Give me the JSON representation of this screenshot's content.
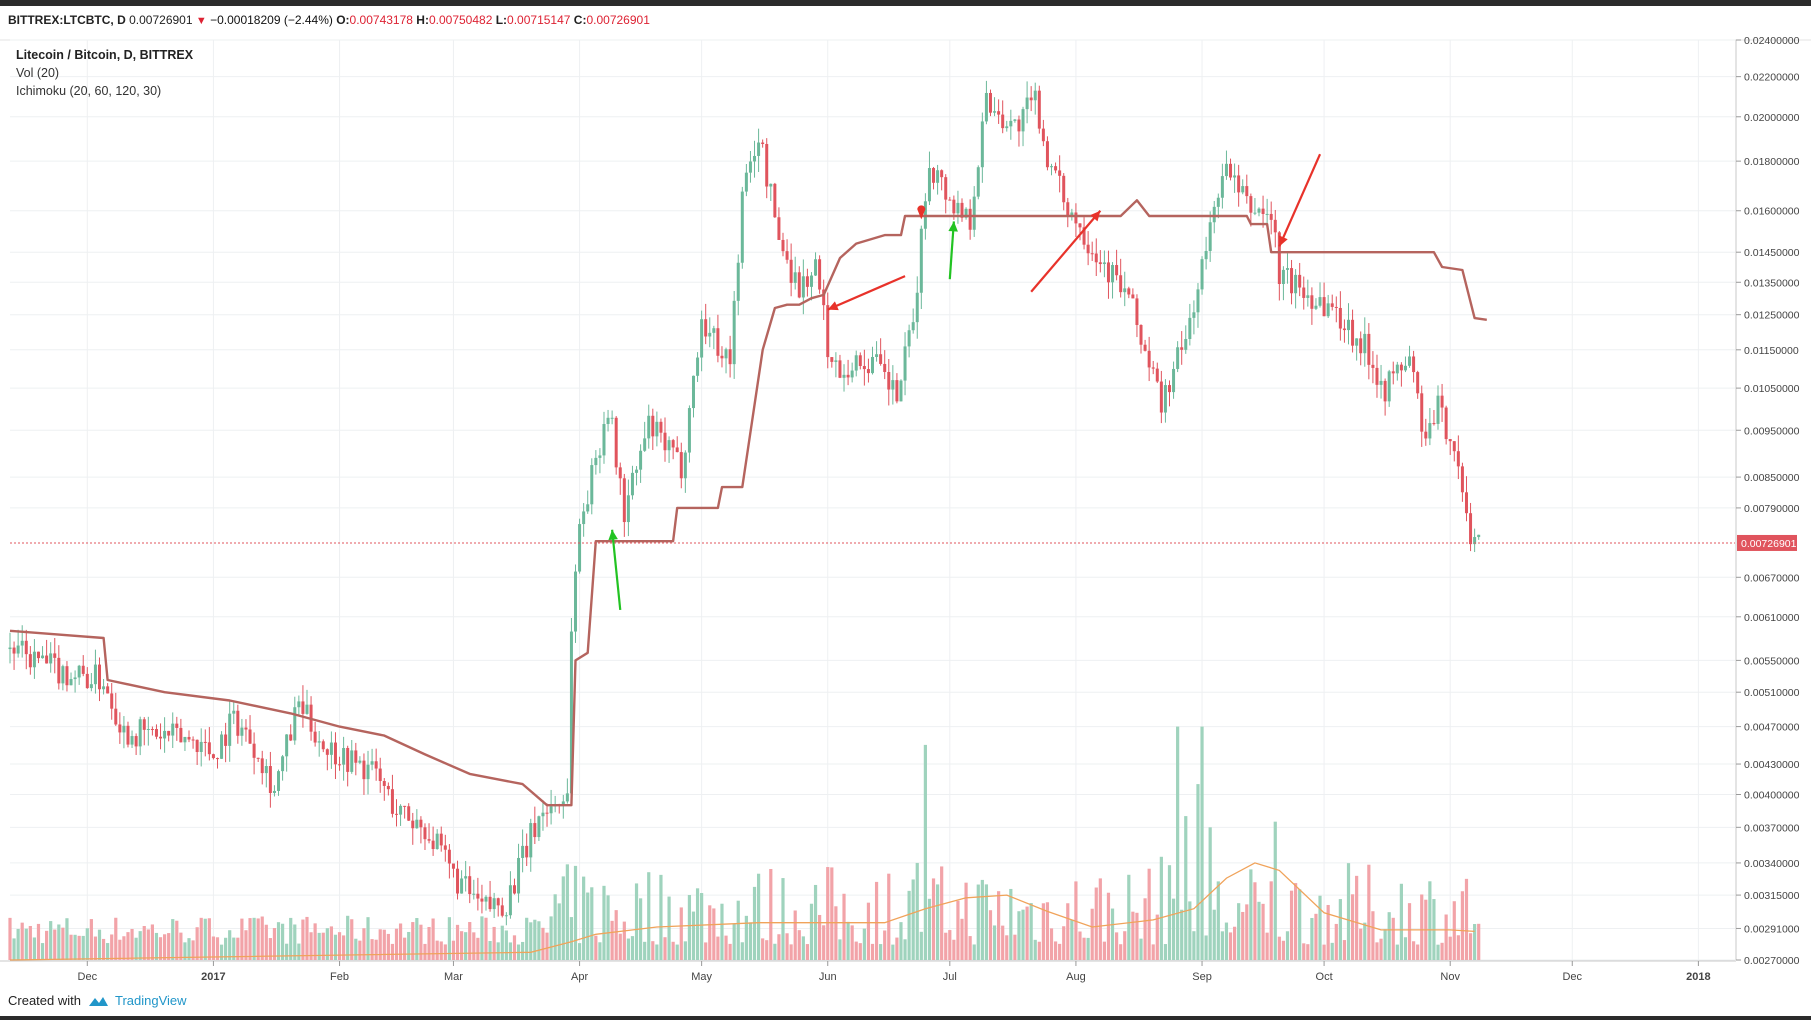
{
  "header": {
    "symbol": "BITTREX:LTCBTC, D",
    "last": "0.00726901",
    "change": "−0.00018209 (−2.44%)",
    "open_label": "O:",
    "open": "0.00743178",
    "high_label": "H:",
    "high": "0.00750482",
    "low_label": "L:",
    "low": "0.00715147",
    "close_label": "C:",
    "close": "0.00726901"
  },
  "legend": {
    "title": "Litecoin / Bitcoin, D, BITTREX",
    "volume": "Vol (20)",
    "ichimoku": "Ichimoku (20, 60, 120, 30)"
  },
  "footer": {
    "created_with": "Created with",
    "brand": "TradingView"
  },
  "colors": {
    "up": "#6bb89a",
    "down": "#e0545d",
    "baseline": "#b5645e",
    "arrow_red": "#e8322a",
    "arrow_green": "#22c322",
    "price_line": "#e0545d",
    "vol_up": "#9fd3bd",
    "vol_down": "#f2a3a8",
    "vol_ma": "#f0a35a"
  },
  "chart_data": {
    "type": "candlestick",
    "price_scale": "log",
    "ylim": [
      0.0027,
      0.024
    ],
    "y_ticks": [
      "0.02400000",
      "0.02200000",
      "0.02000000",
      "0.01800000",
      "0.01600000",
      "0.01450000",
      "0.01350000",
      "0.01250000",
      "0.01150000",
      "0.01050000",
      "0.00950000",
      "0.00850000",
      "0.00790000",
      "0.00670000",
      "0.00610000",
      "0.00550000",
      "0.00510000",
      "0.00470000",
      "0.00430000",
      "0.00400000",
      "0.00370000",
      "0.00340000",
      "0.00315000",
      "0.00291000",
      "0.00270000"
    ],
    "current_price_label": "0.00726901",
    "current_price": 0.00726901,
    "x_ticks": [
      "Dec",
      "2017",
      "Feb",
      "Mar",
      "Apr",
      "May",
      "Jun",
      "Jul",
      "Aug",
      "Sep",
      "Oct",
      "Nov",
      "Dec",
      "2018"
    ],
    "close_path": [
      [
        "2016-11-12",
        0.00565
      ],
      [
        "2016-11-25",
        0.00535
      ],
      [
        "2016-12-05",
        0.00525
      ],
      [
        "2016-12-10",
        0.00465
      ],
      [
        "2016-12-28",
        0.00455
      ],
      [
        "2017-01-01",
        0.0044
      ],
      [
        "2017-01-06",
        0.0048
      ],
      [
        "2017-01-12",
        0.00445
      ],
      [
        "2017-01-16",
        0.00405
      ],
      [
        "2017-01-22",
        0.00495
      ],
      [
        "2017-01-28",
        0.0045
      ],
      [
        "2017-02-10",
        0.0042
      ],
      [
        "2017-02-15",
        0.00385
      ],
      [
        "2017-02-22",
        0.0037
      ],
      [
        "2017-03-01",
        0.0033
      ],
      [
        "2017-03-08",
        0.00305
      ],
      [
        "2017-03-14",
        0.0031
      ],
      [
        "2017-03-22",
        0.0038
      ],
      [
        "2017-03-27",
        0.00395
      ],
      [
        "2017-03-29",
        0.004
      ],
      [
        "2017-03-30",
        0.006
      ],
      [
        "2017-04-01",
        0.0076
      ],
      [
        "2017-04-04",
        0.0085
      ],
      [
        "2017-04-08",
        0.0101
      ],
      [
        "2017-04-12",
        0.0078
      ],
      [
        "2017-04-18",
        0.0096
      ],
      [
        "2017-04-26",
        0.0087
      ],
      [
        "2017-05-01",
        0.0123
      ],
      [
        "2017-05-08",
        0.0112
      ],
      [
        "2017-05-11",
        0.0165
      ],
      [
        "2017-05-15",
        0.0192
      ],
      [
        "2017-05-20",
        0.015
      ],
      [
        "2017-05-25",
        0.0133
      ],
      [
        "2017-05-29",
        0.014
      ],
      [
        "2017-06-02",
        0.011
      ],
      [
        "2017-06-12",
        0.0112
      ],
      [
        "2017-06-18",
        0.0103
      ],
      [
        "2017-06-22",
        0.0122
      ],
      [
        "2017-06-24",
        0.015
      ],
      [
        "2017-06-26",
        0.018
      ],
      [
        "2017-07-02",
        0.0162
      ],
      [
        "2017-07-06",
        0.0158
      ],
      [
        "2017-07-10",
        0.0208
      ],
      [
        "2017-07-17",
        0.0195
      ],
      [
        "2017-07-22",
        0.0208
      ],
      [
        "2017-07-26",
        0.0175
      ],
      [
        "2017-07-30",
        0.0162
      ],
      [
        "2017-08-06",
        0.0145
      ],
      [
        "2017-08-14",
        0.013
      ],
      [
        "2017-08-22",
        0.0101
      ],
      [
        "2017-08-28",
        0.0118
      ],
      [
        "2017-09-03",
        0.0152
      ],
      [
        "2017-09-06",
        0.0178
      ],
      [
        "2017-09-12",
        0.0162
      ],
      [
        "2017-09-18",
        0.0158
      ],
      [
        "2017-09-20",
        0.0138
      ],
      [
        "2017-09-26",
        0.0132
      ],
      [
        "2017-10-02",
        0.0128
      ],
      [
        "2017-10-08",
        0.012
      ],
      [
        "2017-10-12",
        0.0114
      ],
      [
        "2017-10-16",
        0.0105
      ],
      [
        "2017-10-22",
        0.0113
      ],
      [
        "2017-10-26",
        0.0092
      ],
      [
        "2017-10-29",
        0.01
      ],
      [
        "2017-11-02",
        0.0092
      ],
      [
        "2017-11-05",
        0.0076
      ],
      [
        "2017-11-08",
        0.00727
      ]
    ],
    "ichimoku_baseline": [
      [
        "2016-11-12",
        0.0059
      ],
      [
        "2016-12-05",
        0.0058
      ],
      [
        "2016-12-06",
        0.00525
      ],
      [
        "2016-12-20",
        0.0051
      ],
      [
        "2017-01-05",
        0.005
      ],
      [
        "2017-01-20",
        0.00485
      ],
      [
        "2017-02-01",
        0.0047
      ],
      [
        "2017-02-12",
        0.0046
      ],
      [
        "2017-02-22",
        0.0044
      ],
      [
        "2017-03-05",
        0.0042
      ],
      [
        "2017-03-18",
        0.0041
      ],
      [
        "2017-03-24",
        0.0039
      ],
      [
        "2017-03-30",
        0.0039
      ],
      [
        "2017-03-31",
        0.0055
      ],
      [
        "2017-04-03",
        0.0056
      ],
      [
        "2017-04-05",
        0.0073
      ],
      [
        "2017-04-24",
        0.0073
      ],
      [
        "2017-04-25",
        0.0079
      ],
      [
        "2017-05-05",
        0.0079
      ],
      [
        "2017-05-06",
        0.0083
      ],
      [
        "2017-05-11",
        0.0083
      ],
      [
        "2017-05-16",
        0.0115
      ],
      [
        "2017-05-19",
        0.0127
      ],
      [
        "2017-05-22",
        0.0128
      ],
      [
        "2017-05-25",
        0.0128
      ],
      [
        "2017-05-28",
        0.013
      ],
      [
        "2017-05-31",
        0.0131
      ],
      [
        "2017-06-04",
        0.0143
      ],
      [
        "2017-06-08",
        0.0148
      ],
      [
        "2017-06-15",
        0.0151
      ],
      [
        "2017-06-19",
        0.0151
      ],
      [
        "2017-06-20",
        0.0158
      ],
      [
        "2017-07-22",
        0.0158
      ],
      [
        "2017-08-12",
        0.0158
      ],
      [
        "2017-08-16",
        0.0164
      ],
      [
        "2017-08-19",
        0.0158
      ],
      [
        "2017-09-12",
        0.0158
      ],
      [
        "2017-09-13",
        0.0155
      ],
      [
        "2017-09-17",
        0.0155
      ],
      [
        "2017-09-18",
        0.0145
      ],
      [
        "2017-10-28",
        0.0145
      ],
      [
        "2017-10-30",
        0.014
      ],
      [
        "2017-11-04",
        0.0139
      ],
      [
        "2017-11-07",
        0.0124
      ],
      [
        "2017-11-10",
        0.01235
      ]
    ],
    "volume_ma": [
      [
        "2016-11-12",
        0.0027
      ],
      [
        "2017-03-20",
        0.00275
      ],
      [
        "2017-03-30",
        0.00282
      ],
      [
        "2017-04-05",
        0.00287
      ],
      [
        "2017-04-20",
        0.00292
      ],
      [
        "2017-05-15",
        0.00295
      ],
      [
        "2017-06-15",
        0.00295
      ],
      [
        "2017-06-25",
        0.00305
      ],
      [
        "2017-07-05",
        0.00313
      ],
      [
        "2017-07-15",
        0.00315
      ],
      [
        "2017-07-25",
        0.00303
      ],
      [
        "2017-08-05",
        0.00292
      ],
      [
        "2017-08-20",
        0.00297
      ],
      [
        "2017-08-30",
        0.00305
      ],
      [
        "2017-09-07",
        0.00328
      ],
      [
        "2017-09-14",
        0.0034
      ],
      [
        "2017-09-20",
        0.00334
      ],
      [
        "2017-10-01",
        0.00302
      ],
      [
        "2017-10-15",
        0.0029
      ],
      [
        "2017-11-01",
        0.0029
      ],
      [
        "2017-11-07",
        0.00289
      ]
    ],
    "annotations": [
      {
        "type": "arrow",
        "color": "red",
        "from": [
          "2017-06-20",
          0.0137
        ],
        "to": [
          "2017-06-01",
          0.01265
        ]
      },
      {
        "type": "arrow",
        "color": "green",
        "from": [
          "2017-04-11",
          0.0062
        ],
        "to": [
          "2017-04-09",
          0.0075
        ]
      },
      {
        "type": "arrow",
        "color": "green",
        "from": [
          "2017-07-01",
          0.0136
        ],
        "to": [
          "2017-07-02",
          0.0156
        ]
      },
      {
        "type": "arrow",
        "color": "red",
        "from": [
          "2017-07-21",
          0.0132
        ],
        "to": [
          "2017-08-07",
          0.016
        ]
      },
      {
        "type": "arrow",
        "color": "red",
        "from": [
          "2017-09-30",
          0.0183
        ],
        "to": [
          "2017-09-20",
          0.0147
        ]
      },
      {
        "type": "marker",
        "color": "red",
        "at": [
          "2017-06-24",
          0.0159
        ]
      }
    ]
  }
}
